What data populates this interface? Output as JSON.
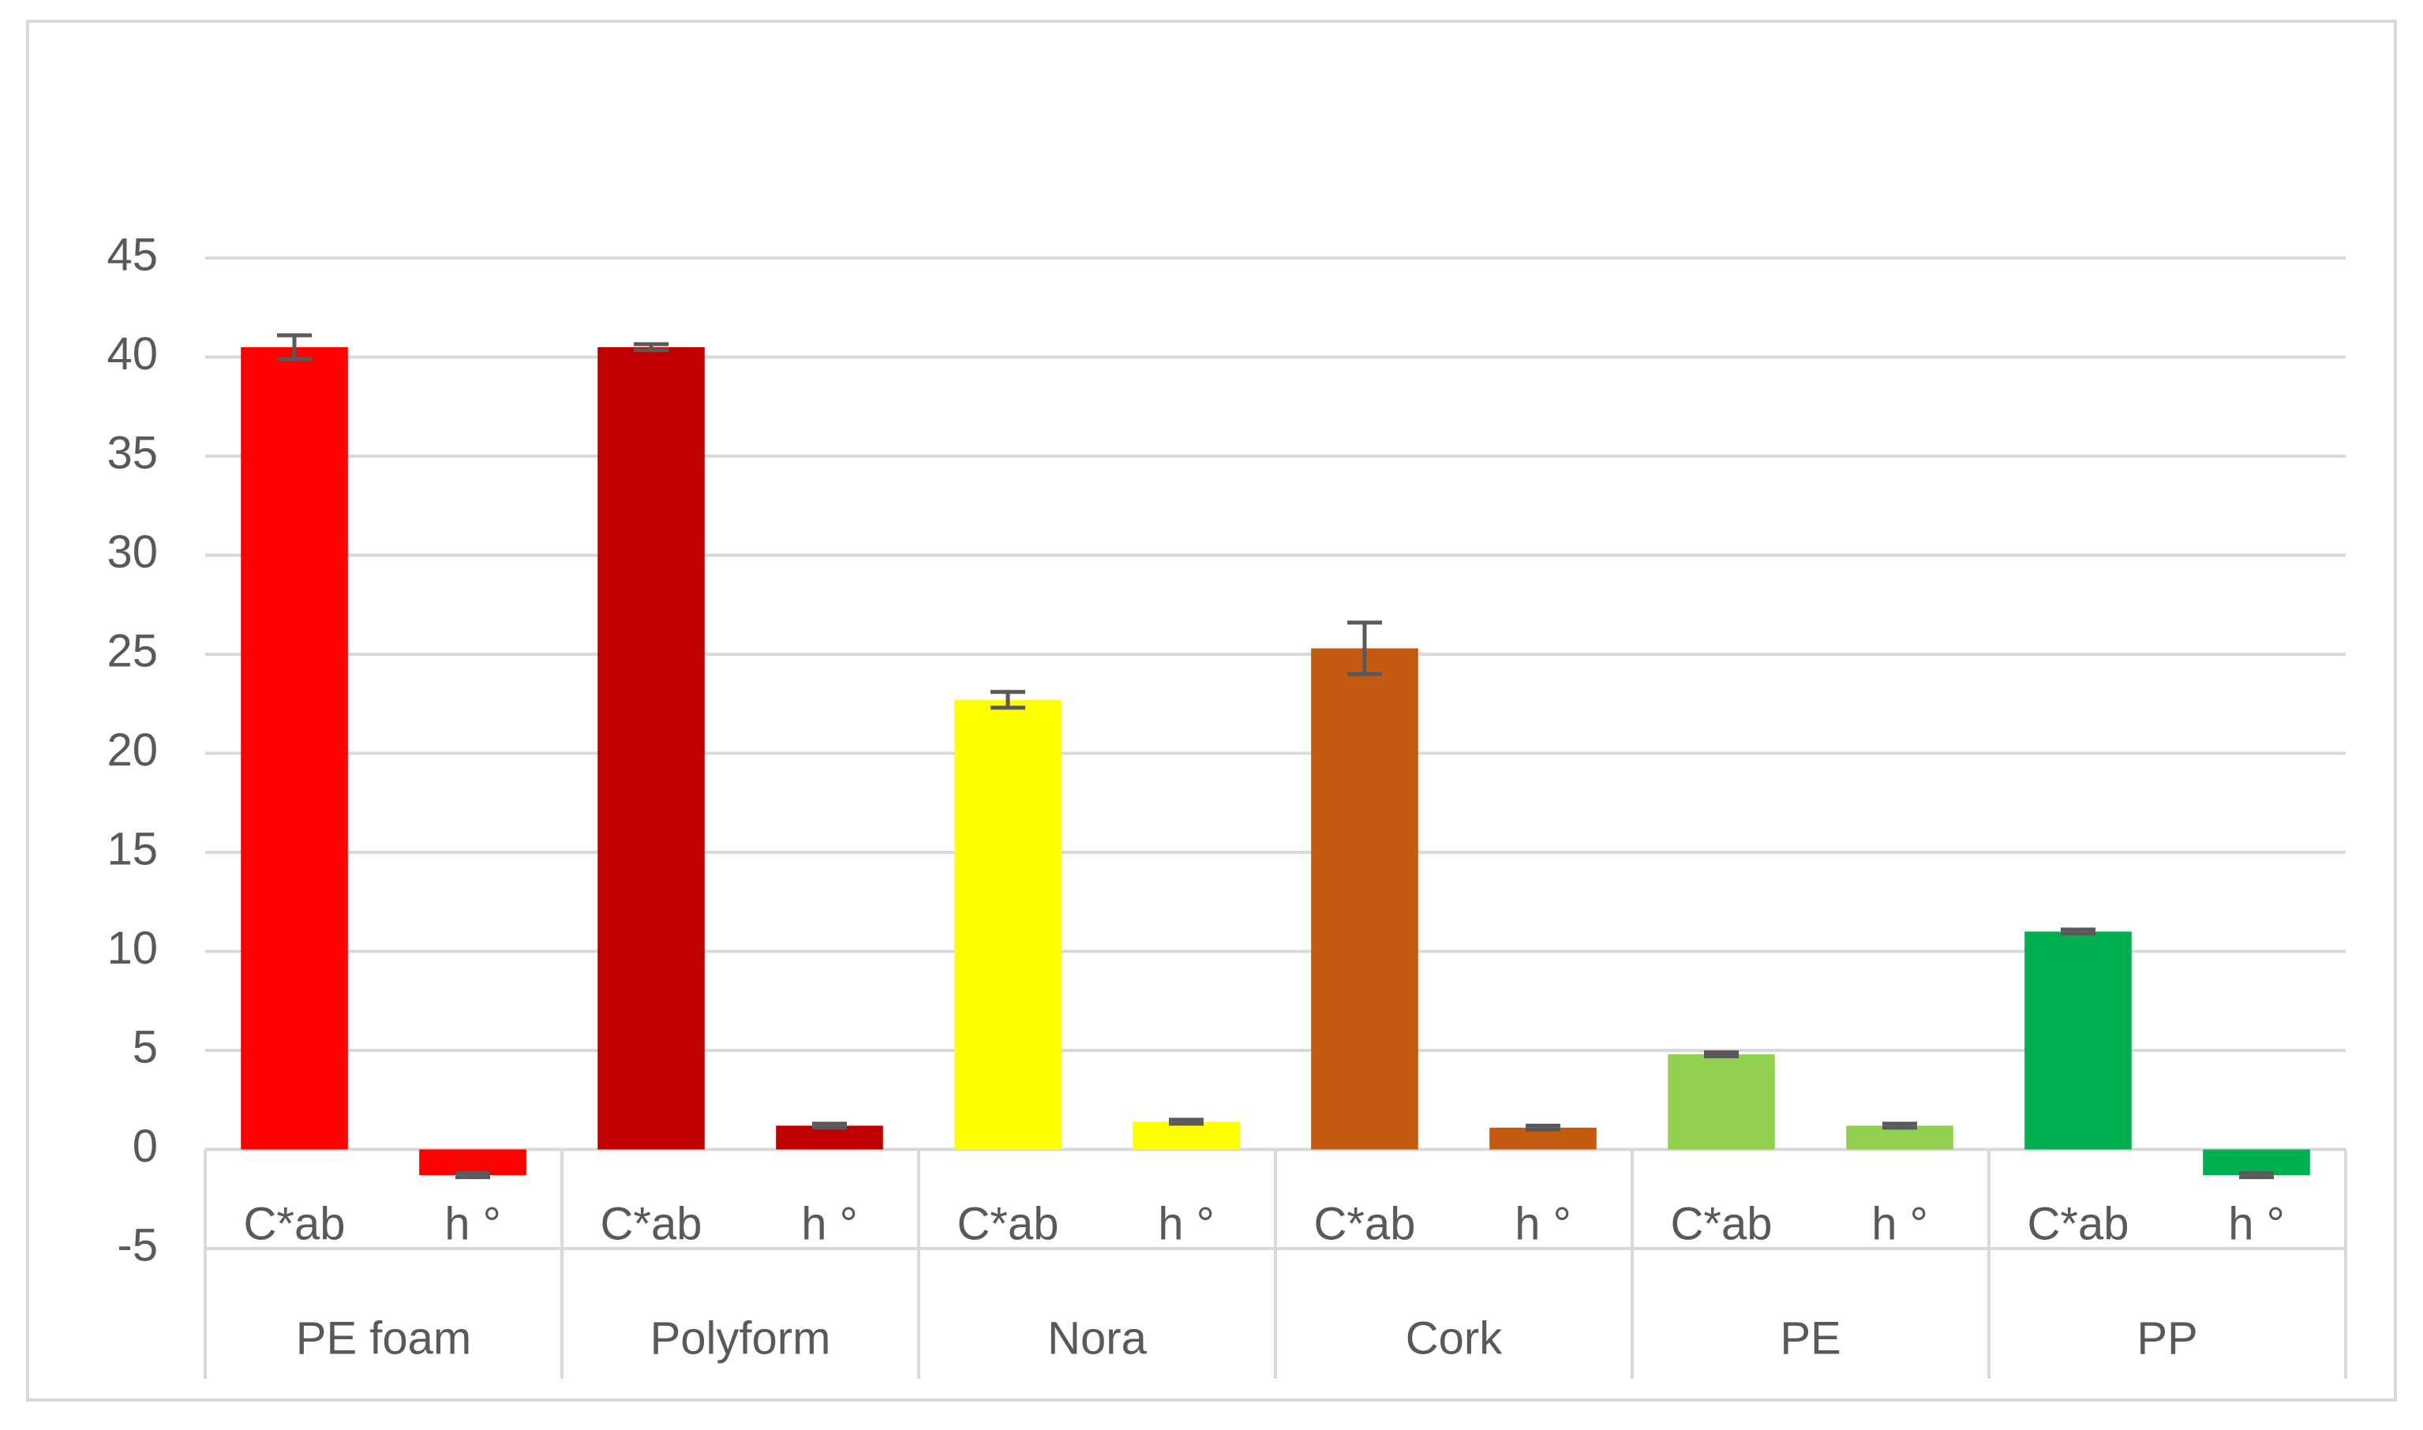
{
  "chart_data": {
    "type": "bar",
    "groups": [
      {
        "name": "PE foam",
        "color": "#ff0000",
        "categories": [
          "C*ab",
          "h °"
        ],
        "values": [
          40.5,
          -1.3
        ],
        "errors": [
          0.6,
          0.1
        ]
      },
      {
        "name": "Polyform",
        "color": "#c00000",
        "categories": [
          "C*ab",
          "h °"
        ],
        "values": [
          40.5,
          1.2
        ],
        "errors": [
          0.15,
          0.1
        ]
      },
      {
        "name": "Nora",
        "color": "#ffff00",
        "categories": [
          "C*ab",
          "h °"
        ],
        "values": [
          22.7,
          1.4
        ],
        "errors": [
          0.4,
          0.1
        ]
      },
      {
        "name": "Cork",
        "color": "#c55a11",
        "categories": [
          "C*ab",
          "h °"
        ],
        "values": [
          25.3,
          1.1
        ],
        "errors": [
          1.3,
          0.1
        ]
      },
      {
        "name": "PE",
        "color": "#92d050",
        "categories": [
          "C*ab",
          "h °"
        ],
        "values": [
          4.8,
          1.2
        ],
        "errors": [
          0.1,
          0.1
        ]
      },
      {
        "name": "PP",
        "color": "#00b050",
        "categories": [
          "C*ab",
          "h °"
        ],
        "values": [
          11.0,
          -1.3
        ],
        "errors": [
          0.1,
          0.1
        ]
      }
    ],
    "ylim": [
      -5,
      45
    ],
    "yticks": [
      -5,
      0,
      5,
      10,
      15,
      20,
      25,
      30,
      35,
      40,
      45
    ],
    "grid": true
  }
}
